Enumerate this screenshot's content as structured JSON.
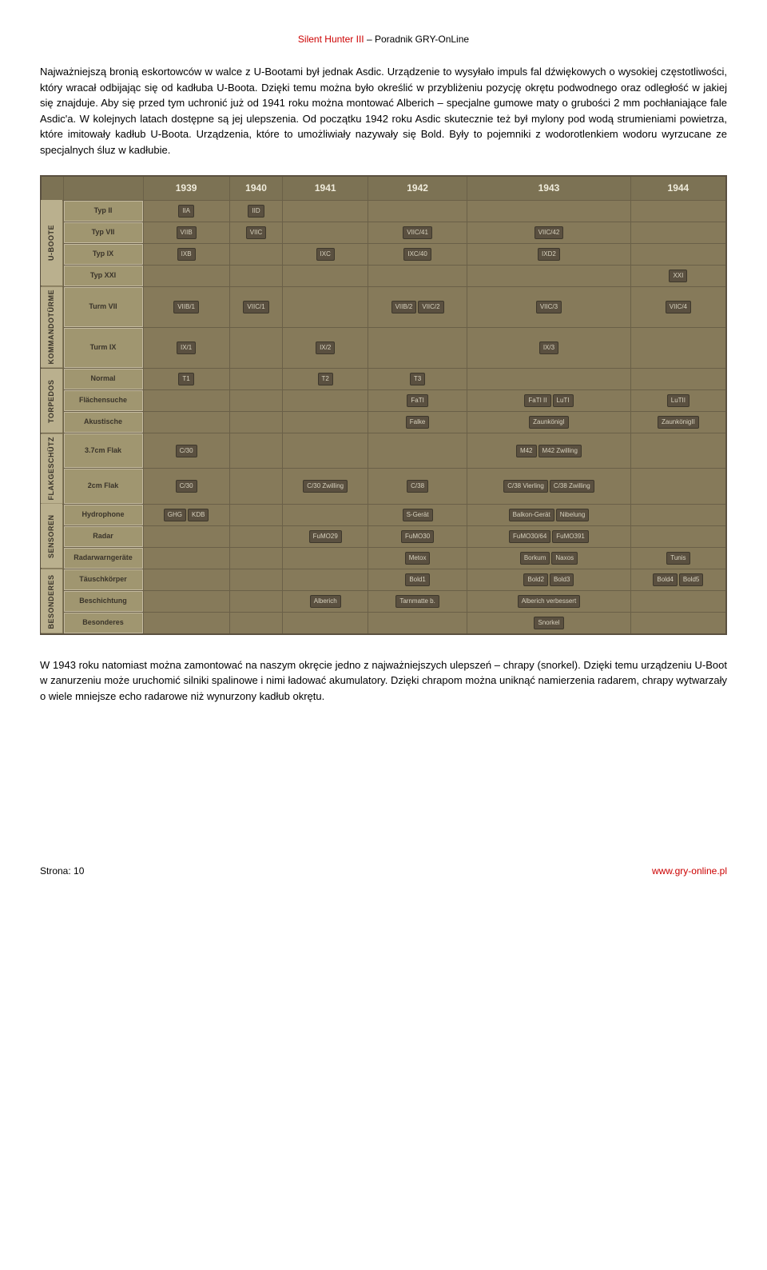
{
  "header": {
    "title_prefix": "Silent Hunter III",
    "title_suffix": " – Poradnik GRY-OnLine",
    "title_prefix_color": "#cc0000",
    "title_suffix_color": "#000000"
  },
  "paragraph1": "Najważniejszą bronią eskortowców w walce z U-Bootami był jednak Asdic. Urządzenie to wysyłało impuls fal dźwiękowych o wysokiej częstotliwości, który wracał odbijając się od kadłuba U-Boota. Dzięki temu można było określić w przybliżeniu pozycję okrętu podwodnego oraz odległość w jakiej się znajduje. Aby się przed tym uchronić już od 1941 roku można montować Alberich – specjalne gumowe maty o grubości 2 mm pochłaniające fale Asdic'a. W kolejnych latach dostępne są jej ulepszenia. Od początku 1942 roku Asdic skutecznie też był mylony pod wodą strumieniami powietrza, które imitowały kadłub U-Boota. Urządzenia, które to umożliwiały nazywały się Bold. Były to pojemniki z wodorotlenkiem wodoru wyrzucane ze specjalnych śluz w kadłubie.",
  "paragraph2": "W 1943 roku natomiast można zamontować na naszym okręcie jedno z najważniejszych ulepszeń – chrapy (snorkel). Dzięki temu urządzeniu U-Boot w zanurzeniu może uruchomić silniki spalinowe i nimi ładować akumulatory. Dzięki chrapom można uniknąć namierzenia radarem, chrapy wytwarzały o wiele mniejsze echo radarowe niż wynurzony kadłub okrętu.",
  "chart": {
    "years": [
      "1939",
      "1940",
      "1941",
      "1942",
      "1943",
      "1944"
    ],
    "background_color": "#867a5a",
    "header_bg": "#7c7254",
    "category_bg": "#bab08e",
    "rowlabel_bg": "#a09670",
    "item_bg": "#5a5040",
    "border_color": "#5a5040",
    "categories": [
      {
        "name": "U-BOOTE",
        "rows": [
          {
            "label": "Typ II",
            "cells": [
              [
                "IIA"
              ],
              [
                "IID"
              ],
              [],
              [],
              [],
              []
            ]
          },
          {
            "label": "Typ VII",
            "cells": [
              [
                "VIIB"
              ],
              [
                "VIIC"
              ],
              [],
              [
                "VIIC/41"
              ],
              [
                "VIIC/42"
              ],
              []
            ]
          },
          {
            "label": "Typ IX",
            "cells": [
              [
                "IXB"
              ],
              [],
              [
                "IXC"
              ],
              [
                "IXC/40"
              ],
              [
                "IXD2"
              ],
              []
            ]
          },
          {
            "label": "Typ XXI",
            "cells": [
              [],
              [],
              [],
              [],
              [],
              [
                "XXI"
              ]
            ]
          }
        ]
      },
      {
        "name": "KOMMANDOTÜRME",
        "rows": [
          {
            "label": "Turm VII",
            "cells": [
              [
                "VIIB/1"
              ],
              [
                "VIIC/1"
              ],
              [],
              [
                "VIIB/2",
                "VIIC/2"
              ],
              [
                "VIIC/3"
              ],
              [
                "VIIC/4"
              ]
            ]
          },
          {
            "label": "Turm IX",
            "cells": [
              [
                "IX/1"
              ],
              [],
              [
                "IX/2"
              ],
              [],
              [
                "IX/3"
              ],
              []
            ]
          }
        ]
      },
      {
        "name": "TORPEDOS",
        "rows": [
          {
            "label": "Normal",
            "cells": [
              [
                "T1"
              ],
              [],
              [
                "T2"
              ],
              [
                "T3"
              ],
              [],
              []
            ]
          },
          {
            "label": "Flächensuche",
            "cells": [
              [],
              [],
              [],
              [
                "FaTI"
              ],
              [
                "FaTI II",
                "LuTI"
              ],
              [
                "LuTII"
              ]
            ]
          },
          {
            "label": "Akustische",
            "cells": [
              [],
              [],
              [],
              [
                "Falke"
              ],
              [
                "ZaunkönigI"
              ],
              [
                "ZaunkönigII"
              ]
            ]
          }
        ]
      },
      {
        "name": "FLAKGESCHÜTZ",
        "rows": [
          {
            "label": "3.7cm Flak",
            "cells": [
              [
                "C/30"
              ],
              [],
              [],
              [],
              [
                "M42",
                "M42 Zwilling"
              ],
              []
            ]
          },
          {
            "label": "2cm Flak",
            "cells": [
              [
                "C/30"
              ],
              [],
              [
                "C/30 Zwilling"
              ],
              [
                "C/38"
              ],
              [
                "C/38 Vierling",
                "C/38 Zwilling"
              ],
              []
            ]
          }
        ]
      },
      {
        "name": "SENSOREN",
        "rows": [
          {
            "label": "Hydrophone",
            "cells": [
              [
                "GHG",
                "KDB"
              ],
              [],
              [],
              [
                "S-Gerät"
              ],
              [
                "Balkon-Gerät",
                "Nibelung"
              ],
              []
            ]
          },
          {
            "label": "Radar",
            "cells": [
              [],
              [],
              [
                "FuMO29"
              ],
              [
                "FuMO30"
              ],
              [
                "FuMO30/64",
                "FuMO391"
              ],
              []
            ]
          },
          {
            "label": "Radarwarngeräte",
            "cells": [
              [],
              [],
              [],
              [
                "Metox"
              ],
              [
                "Borkum",
                "Naxos"
              ],
              [
                "Tunis"
              ]
            ]
          }
        ]
      },
      {
        "name": "BESONDERES",
        "rows": [
          {
            "label": "Täuschkörper",
            "cells": [
              [],
              [],
              [],
              [
                "Bold1"
              ],
              [
                "Bold2",
                "Bold3"
              ],
              [
                "Bold4",
                "Bold5"
              ]
            ]
          },
          {
            "label": "Beschichtung",
            "cells": [
              [],
              [],
              [
                "Alberich"
              ],
              [
                "Tarnmatte b."
              ],
              [
                "Alberich verbessert"
              ],
              []
            ]
          },
          {
            "label": "Besonderes",
            "cells": [
              [],
              [],
              [],
              [],
              [
                "Snorkel"
              ],
              []
            ]
          }
        ]
      }
    ]
  },
  "footer": {
    "page_label": "Strona: 10",
    "url": "www.gry-online.pl"
  }
}
